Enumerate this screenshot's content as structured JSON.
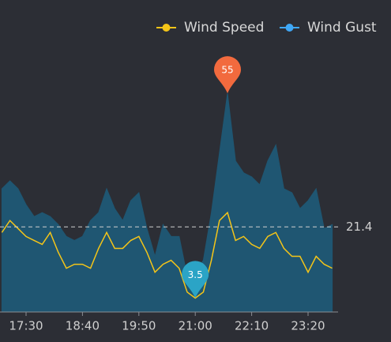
{
  "chart_data": {
    "type": "line",
    "categories": [
      null,
      null,
      null,
      "17:30",
      null,
      null,
      null,
      null,
      null,
      null,
      "18:40",
      null,
      null,
      null,
      null,
      null,
      null,
      "19:50",
      null,
      null,
      null,
      null,
      null,
      null,
      "21:00",
      null,
      null,
      null,
      null,
      null,
      null,
      "22:10",
      null,
      null,
      null,
      null,
      null,
      null,
      "23:20",
      null,
      null,
      null
    ],
    "series": [
      {
        "name": "Wind Speed",
        "color": "#f5c518",
        "values": [
          20,
          23,
          21,
          19,
          18,
          17,
          20,
          15,
          11,
          12,
          12,
          11,
          16,
          20,
          16,
          16,
          18,
          19,
          15,
          10,
          12,
          13,
          11,
          5,
          3.5,
          5,
          13,
          23,
          25,
          18,
          19,
          17,
          16,
          19,
          20,
          16,
          14,
          14,
          10,
          14,
          12,
          11
        ]
      },
      {
        "name": "Wind Gust",
        "color": "#3fa7f5",
        "area_color": "#1f5672",
        "values": [
          31,
          33,
          31,
          27,
          24,
          25,
          24,
          22,
          19,
          18,
          19,
          23,
          25,
          31,
          26,
          23,
          28,
          30,
          21,
          14,
          22,
          19,
          19,
          9,
          10,
          13,
          25,
          40,
          55,
          38,
          35,
          34,
          32,
          38,
          42,
          31,
          30,
          26,
          28,
          31,
          21,
          22
        ]
      }
    ],
    "max_point": {
      "series": 1,
      "index": 28,
      "color": "#f26a3e"
    },
    "min_point": {
      "series": 0,
      "index": 24,
      "color": "#2ba4c6"
    },
    "average": 21.4,
    "ylim": [
      0,
      60
    ]
  }
}
